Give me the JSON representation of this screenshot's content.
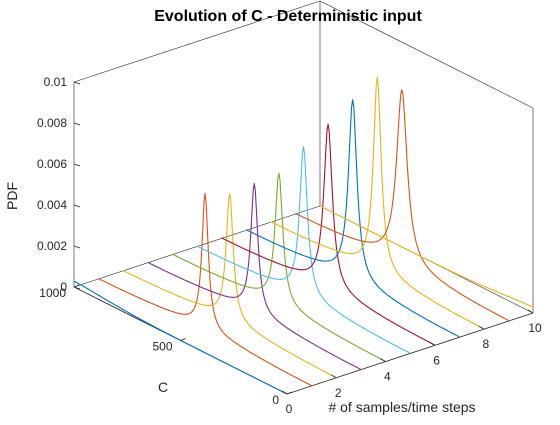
{
  "chart_data": {
    "type": "line",
    "projection": "3d-waterfall",
    "title": "Evolution of C - Deterministic input",
    "xlabel": "# of samples/time steps",
    "ylabel": "C",
    "zlabel": "PDF",
    "xlim": [
      0,
      10
    ],
    "ylim": [
      0,
      1000
    ],
    "zlim": [
      0,
      0.01
    ],
    "xticks": [
      "0",
      "2",
      "4",
      "6",
      "8",
      "10"
    ],
    "yticks": [
      "0",
      "500",
      "1000"
    ],
    "zticks": [
      "0",
      "0.002",
      "0.004",
      "0.006",
      "0.008",
      "0.01"
    ],
    "grid": false,
    "series": [
      {
        "x": 0,
        "color": "#0072BD",
        "c_peak": 1000,
        "peak": 0.0001,
        "width": 120
      },
      {
        "x": 1,
        "color": "#D95319",
        "c_peak": 500,
        "peak": 0.0066,
        "width": 18
      },
      {
        "x": 2,
        "color": "#EDB120",
        "c_peak": 500,
        "peak": 0.0062,
        "width": 20
      },
      {
        "x": 3,
        "color": "#7E2F8E",
        "c_peak": 500,
        "peak": 0.0063,
        "width": 20
      },
      {
        "x": 4,
        "color": "#77AC30",
        "c_peak": 500,
        "peak": 0.0064,
        "width": 22
      },
      {
        "x": 5,
        "color": "#4DBEEE",
        "c_peak": 500,
        "peak": 0.0073,
        "width": 22
      },
      {
        "x": 6,
        "color": "#A2142F",
        "c_peak": 500,
        "peak": 0.008,
        "width": 24
      },
      {
        "x": 7,
        "color": "#0072BD",
        "c_peak": 500,
        "peak": 0.0088,
        "width": 24
      },
      {
        "x": 8,
        "color": "#EDB120",
        "c_peak": 500,
        "peak": 0.0095,
        "width": 22
      },
      {
        "x": 9,
        "color": "#D95319",
        "c_peak": 500,
        "peak": 0.0085,
        "width": 30
      },
      {
        "x": 10,
        "color": "#EDB120",
        "c_peak": 0,
        "peak": 0.0001,
        "width": 120
      }
    ]
  }
}
